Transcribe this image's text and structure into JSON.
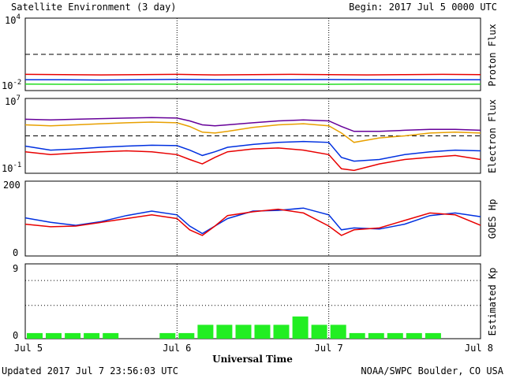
{
  "header": {
    "title": "Satellite Environment (3 day)",
    "begin": "Begin:  2017 Jul 5 0000 UTC"
  },
  "footer": {
    "updated": "Updated 2017 Jul  7 23:56:03 UTC",
    "credit": "NOAA/SWPC Boulder, CO USA",
    "xlabel": "Universal Time"
  },
  "colors": {
    "red": "#e80000",
    "blue": "#0030e0",
    "green": "#22dd22",
    "purple": "#660099",
    "orange": "#e8a000",
    "kp_bar": "#22ee22"
  },
  "chart_data": [
    {
      "type": "line",
      "name": "proton-flux",
      "ylabel": "Proton Flux",
      "log": true,
      "ylim": [
        0.01,
        10000
      ],
      "ytick_labels": {
        "top": "10",
        "top_exp": "4",
        "bottom": "10",
        "bottom_exp": "-2"
      },
      "threshold": 10,
      "x": [
        0,
        6,
        12,
        18,
        24,
        30,
        36,
        42,
        48,
        54,
        60,
        66,
        72
      ],
      "series": [
        {
          "color": "red",
          "values": [
            0.22,
            0.21,
            0.2,
            0.21,
            0.22,
            0.2,
            0.21,
            0.22,
            0.21,
            0.2,
            0.21,
            0.22,
            0.21
          ]
        },
        {
          "color": "blue",
          "values": [
            0.08,
            0.08,
            0.075,
            0.08,
            0.085,
            0.08,
            0.078,
            0.08,
            0.082,
            0.08,
            0.078,
            0.08,
            0.08
          ]
        },
        {
          "color": "green",
          "values": [
            0.035,
            0.033,
            0.034,
            0.035,
            0.034,
            0.033,
            0.035,
            0.034,
            0.033,
            0.035,
            0.034,
            0.033,
            0.034
          ]
        }
      ]
    },
    {
      "type": "line",
      "name": "electron-flux",
      "ylabel": "Electron Flux",
      "log": true,
      "ylim": [
        0.1,
        10000000
      ],
      "ytick_labels": {
        "top": "10",
        "top_exp": "7",
        "bottom": "10",
        "bottom_exp": "-1"
      },
      "threshold": 1000,
      "x": [
        0,
        4,
        8,
        12,
        16,
        20,
        24,
        26,
        28,
        30,
        32,
        36,
        40,
        44,
        48,
        50,
        52,
        56,
        60,
        64,
        68,
        72
      ],
      "series": [
        {
          "color": "purple",
          "values": [
            60000,
            50000,
            60000,
            70000,
            80000,
            90000,
            80000,
            40000,
            15000,
            12000,
            15000,
            25000,
            40000,
            50000,
            40000,
            10000,
            3000,
            3000,
            4000,
            5000,
            5000,
            4000
          ]
        },
        {
          "color": "orange",
          "values": [
            15000,
            12000,
            15000,
            20000,
            25000,
            30000,
            25000,
            10000,
            2500,
            2000,
            3000,
            8000,
            15000,
            20000,
            12000,
            2000,
            200,
            600,
            1000,
            2000,
            2500,
            2000
          ]
        },
        {
          "color": "blue",
          "values": [
            80,
            30,
            40,
            60,
            80,
            100,
            90,
            30,
            8,
            20,
            60,
            120,
            200,
            250,
            200,
            5,
            2,
            3,
            10,
            20,
            30,
            25
          ]
        },
        {
          "color": "red",
          "values": [
            20,
            10,
            15,
            20,
            25,
            20,
            10,
            3,
            1,
            5,
            20,
            40,
            50,
            30,
            10,
            0.3,
            0.2,
            1,
            3,
            5,
            8,
            3
          ]
        }
      ]
    },
    {
      "type": "line",
      "name": "goes-hp",
      "ylabel": "GOES Hp",
      "ylim": [
        0,
        200
      ],
      "yticks": [
        "200",
        "0"
      ],
      "x": [
        0,
        4,
        8,
        12,
        16,
        20,
        24,
        26,
        28,
        30,
        32,
        36,
        40,
        44,
        48,
        50,
        52,
        56,
        60,
        64,
        68,
        72
      ],
      "series": [
        {
          "color": "blue",
          "values": [
            102,
            90,
            82,
            92,
            108,
            120,
            110,
            80,
            60,
            80,
            100,
            120,
            122,
            128,
            110,
            70,
            75,
            72,
            85,
            108,
            115,
            105
          ]
        },
        {
          "color": "red",
          "values": [
            85,
            78,
            80,
            90,
            100,
            110,
            100,
            70,
            55,
            80,
            108,
            118,
            125,
            115,
            80,
            55,
            70,
            75,
            95,
            115,
            110,
            82
          ]
        }
      ]
    },
    {
      "type": "bar",
      "name": "estimated-kp",
      "ylabel": "Estimated Kp",
      "ylim": [
        0,
        9
      ],
      "yticks": [
        "9",
        "0"
      ],
      "threshold_lines": [
        4,
        7
      ],
      "values": [
        0.67,
        0.67,
        0.67,
        0.67,
        0.67,
        0.0,
        0.0,
        0.67,
        0.67,
        1.67,
        1.67,
        1.67,
        1.67,
        1.67,
        2.67,
        1.67,
        1.67,
        0.67,
        0.67,
        0.67,
        0.67,
        0.67,
        0.0,
        0.0
      ]
    }
  ],
  "x_axis": {
    "range_hours": [
      0,
      72
    ],
    "ticks": [
      {
        "hour": 0,
        "label": "Jul 5"
      },
      {
        "hour": 24,
        "label": "Jul 6"
      },
      {
        "hour": 48,
        "label": "Jul 7"
      },
      {
        "hour": 72,
        "label": "Jul 8"
      }
    ]
  }
}
